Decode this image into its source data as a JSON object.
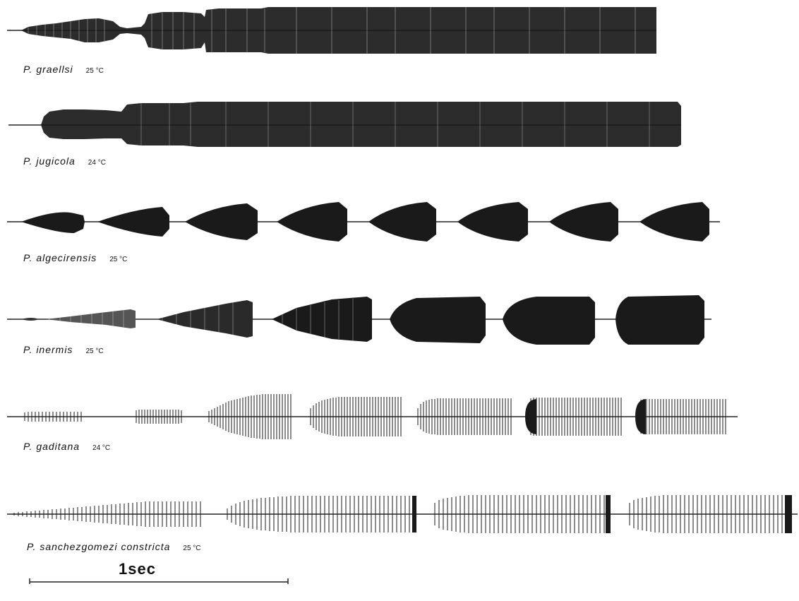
{
  "figure": {
    "recordings": [
      {
        "species": "P. graellsi",
        "temperature": "25 °C",
        "color": "#1a1a1a"
      },
      {
        "species": "P. jugicola",
        "temperature": "24 °C",
        "color": "#1a1a1a"
      },
      {
        "species": "P. algecirensis",
        "temperature": "25 °C",
        "color": "#1a1a1a"
      },
      {
        "species": "P. inermis",
        "temperature": "25 °C",
        "color": "#1a1a1a"
      },
      {
        "species": "P. gaditana",
        "temperature": "24 °C",
        "color": "#1a1a1a"
      },
      {
        "species": "P. sanchezgomezi constricta",
        "temperature": "25 °C",
        "color": "#1a1a1a"
      }
    ],
    "scale_bar": {
      "label": "1sec"
    }
  }
}
